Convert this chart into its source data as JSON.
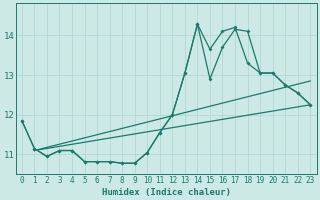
{
  "xlabel": "Humidex (Indice chaleur)",
  "bg_color": "#cce9e5",
  "grid_color": "#afd4d0",
  "line_color": "#1a7a6e",
  "xlim": [
    -0.5,
    23.5
  ],
  "ylim": [
    10.5,
    14.8
  ],
  "yticks": [
    11,
    12,
    13,
    14
  ],
  "xticks": [
    0,
    1,
    2,
    3,
    4,
    5,
    6,
    7,
    8,
    9,
    10,
    11,
    12,
    13,
    14,
    15,
    16,
    17,
    18,
    19,
    20,
    21,
    22,
    23
  ],
  "line1_x": [
    0,
    1,
    2,
    3,
    4,
    5,
    6,
    7,
    8,
    9,
    10,
    11,
    12,
    13,
    14,
    15,
    16,
    17,
    18,
    19,
    20,
    21,
    22,
    23
  ],
  "line1_y": [
    11.85,
    11.15,
    10.95,
    11.1,
    11.1,
    10.82,
    10.82,
    10.82,
    10.78,
    10.78,
    11.05,
    11.55,
    12.0,
    13.05,
    14.28,
    12.9,
    13.7,
    14.15,
    14.1,
    13.05,
    13.05,
    12.75,
    12.55,
    12.25
  ],
  "line2_x": [
    0,
    1,
    2,
    3,
    4,
    5,
    6,
    7,
    8,
    9,
    10,
    11,
    12,
    13,
    14,
    15,
    16,
    17,
    18,
    19,
    20,
    21,
    22,
    23
  ],
  "line2_y": [
    11.85,
    11.15,
    10.95,
    11.1,
    11.1,
    10.82,
    10.82,
    10.82,
    10.78,
    10.78,
    11.05,
    11.55,
    12.0,
    13.05,
    14.28,
    13.65,
    14.1,
    14.2,
    13.3,
    13.05,
    13.05,
    12.75,
    12.55,
    12.25
  ],
  "trend1_x": [
    1,
    23
  ],
  "trend1_y": [
    11.1,
    12.25
  ],
  "trend2_x": [
    1,
    23
  ],
  "trend2_y": [
    11.1,
    12.85
  ]
}
